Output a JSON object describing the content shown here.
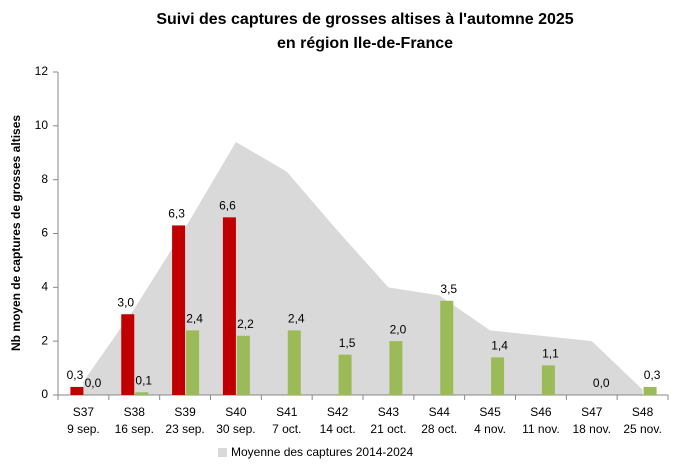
{
  "chart_data": {
    "type": "bar",
    "title": [
      "Suivi des captures de grosses altises à l'automne 2025",
      "en région Ile-de-France"
    ],
    "y_label": "Nb moyen de captures de grosses altises",
    "categories": [
      [
        "S37",
        "9 sep."
      ],
      [
        "S38",
        "16 sep."
      ],
      [
        "S39",
        "23 sep."
      ],
      [
        "S40",
        "30 sep."
      ],
      [
        "S41",
        "7 oct."
      ],
      [
        "S42",
        "14 oct."
      ],
      [
        "S43",
        "21 oct."
      ],
      [
        "S44",
        "28 oct."
      ],
      [
        "S45",
        "4 nov."
      ],
      [
        "S46",
        "11 nov."
      ],
      [
        "S47",
        "18 nov."
      ],
      [
        "S48",
        "25 nov."
      ]
    ],
    "area": {
      "name": "Moyenne des captures 2014-2024",
      "color": "#d9d9d9",
      "values": [
        0.5,
        3.2,
        6.2,
        9.4,
        8.3,
        6.1,
        4.0,
        3.7,
        2.4,
        2.2,
        2.0,
        0.2
      ]
    },
    "series": [
      {
        "color": "#c00000",
        "values": [
          0.3,
          3.0,
          6.3,
          6.6,
          null,
          null,
          null,
          null,
          null,
          null,
          null,
          null
        ],
        "value_labels": [
          "0,3",
          "3,0",
          "6,3",
          "6,6",
          null,
          null,
          null,
          null,
          null,
          null,
          null,
          null
        ]
      },
      {
        "color": "#9bbb59",
        "values": [
          0.0,
          0.1,
          2.4,
          2.2,
          2.4,
          1.5,
          2.0,
          3.5,
          1.4,
          1.1,
          0.0,
          0.3
        ],
        "value_labels": [
          "0,0",
          "0,1",
          "2,4",
          "2,2",
          "2,4",
          "1,5",
          "2,0",
          "3,5",
          "1,4",
          "1,1",
          "0,0",
          "0,3"
        ]
      }
    ],
    "ylim": [
      0,
      12
    ],
    "yticks": [
      0,
      2,
      4,
      6,
      8,
      10,
      12
    ],
    "grid": false,
    "legend": "bottom"
  }
}
